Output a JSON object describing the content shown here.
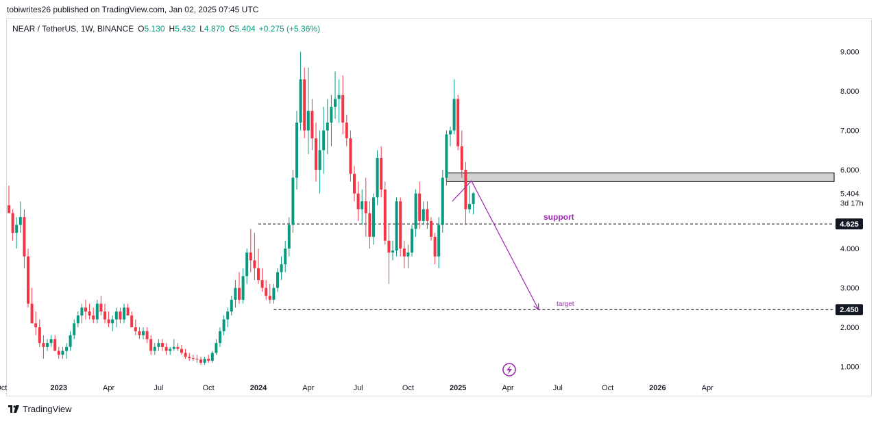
{
  "header": {
    "published_by": "tobiwrites26 published on TradingView.com, Jan 02, 2025 07:45 UTC"
  },
  "legend": {
    "symbol": "NEAR / TetherUS, 1W, BINANCE",
    "open_label": "O",
    "open": "5.130",
    "high_label": "H",
    "high": "5.432",
    "low_label": "L",
    "low": "4.870",
    "close_label": "C",
    "close": "5.404",
    "change": "+0.275 (+5.36%)"
  },
  "footer": {
    "brand": "TradingView"
  },
  "colors": {
    "up": "#089981",
    "down": "#f23645",
    "annotation": "#9c27b0",
    "zone": "#d1d1d1"
  },
  "chart_data": {
    "type": "candlestick",
    "title": "NEAR / TetherUS, 1W, BINANCE",
    "ylim": [
      0.7,
      9.5
    ],
    "y_ticks": [
      "9.000",
      "8.000",
      "7.000",
      "6.000",
      "4.000",
      "3.000",
      "2.000",
      "1.000"
    ],
    "y_tick_values": [
      9,
      8,
      7,
      6,
      4,
      3,
      2,
      1
    ],
    "x_ticks": [
      {
        "label": "Oct",
        "t": -2,
        "bold": false
      },
      {
        "label": "2023",
        "t": 13,
        "bold": true
      },
      {
        "label": "Apr",
        "t": 26,
        "bold": false
      },
      {
        "label": "Jul",
        "t": 39,
        "bold": false
      },
      {
        "label": "Oct",
        "t": 52,
        "bold": false
      },
      {
        "label": "2024",
        "t": 65,
        "bold": true
      },
      {
        "label": "Apr",
        "t": 78,
        "bold": false
      },
      {
        "label": "Jul",
        "t": 91,
        "bold": false
      },
      {
        "label": "Oct",
        "t": 104,
        "bold": false
      },
      {
        "label": "2025",
        "t": 117,
        "bold": true
      },
      {
        "label": "Apr",
        "t": 130,
        "bold": false
      },
      {
        "label": "Jul",
        "t": 143,
        "bold": false
      },
      {
        "label": "Oct",
        "t": 156,
        "bold": false
      },
      {
        "label": "2026",
        "t": 169,
        "bold": true
      },
      {
        "label": "Apr",
        "t": 182,
        "bold": false
      }
    ],
    "price_label": {
      "value": 5.404,
      "text": "5.404",
      "countdown": "3d 17h"
    },
    "levels": [
      {
        "name": "support",
        "label": "support",
        "value": 4.625,
        "tag": "4.625",
        "t_start": 65
      },
      {
        "name": "target",
        "label": "target",
        "value": 2.45,
        "tag": "2.450",
        "t_start": 69
      }
    ],
    "resistance_zone": {
      "low": 5.7,
      "high": 5.92,
      "t_start": 114
    },
    "projection": [
      {
        "t": 115.5,
        "p": 5.2
      },
      {
        "t": 120.5,
        "p": 5.72
      },
      {
        "t": 138,
        "p": 2.45
      }
    ],
    "candles": [
      [
        5.1,
        5.6,
        4.95,
        4.9
      ],
      [
        4.9,
        5.0,
        4.2,
        4.4
      ],
      [
        4.4,
        4.8,
        4.0,
        4.6
      ],
      [
        4.6,
        5.2,
        4.4,
        4.8
      ],
      [
        4.8,
        5.0,
        3.5,
        3.8
      ],
      [
        3.8,
        4.0,
        2.5,
        2.6
      ],
      [
        2.6,
        3.0,
        2.1,
        2.1
      ],
      [
        2.1,
        2.4,
        1.8,
        2.0
      ],
      [
        2.0,
        2.2,
        1.5,
        1.6
      ],
      [
        1.6,
        1.8,
        1.2,
        1.5
      ],
      [
        1.5,
        1.7,
        1.4,
        1.6
      ],
      [
        1.6,
        1.8,
        1.5,
        1.7
      ],
      [
        1.7,
        1.8,
        1.4,
        1.4
      ],
      [
        1.4,
        1.5,
        1.2,
        1.3
      ],
      [
        1.3,
        1.5,
        1.2,
        1.4
      ],
      [
        1.4,
        1.6,
        1.2,
        1.5
      ],
      [
        1.5,
        1.9,
        1.4,
        1.8
      ],
      [
        1.8,
        2.2,
        1.7,
        2.1
      ],
      [
        2.1,
        2.4,
        2.0,
        2.3
      ],
      [
        2.3,
        2.6,
        2.1,
        2.5
      ],
      [
        2.5,
        2.7,
        2.2,
        2.4
      ],
      [
        2.4,
        2.6,
        2.2,
        2.3
      ],
      [
        2.3,
        2.5,
        2.1,
        2.2
      ],
      [
        2.2,
        2.7,
        2.1,
        2.6
      ],
      [
        2.6,
        2.8,
        2.3,
        2.4
      ],
      [
        2.4,
        2.6,
        2.1,
        2.2
      ],
      [
        2.2,
        2.4,
        2.0,
        2.1
      ],
      [
        2.1,
        2.3,
        1.9,
        2.2
      ],
      [
        2.2,
        2.5,
        2.0,
        2.4
      ],
      [
        2.4,
        2.5,
        2.1,
        2.2
      ],
      [
        2.2,
        2.6,
        2.1,
        2.5
      ],
      [
        2.5,
        2.6,
        2.3,
        2.3
      ],
      [
        2.3,
        2.4,
        2.0,
        2.0
      ],
      [
        2.0,
        2.2,
        1.8,
        1.9
      ],
      [
        1.9,
        2.0,
        1.7,
        1.8
      ],
      [
        1.8,
        2.0,
        1.7,
        1.9
      ],
      [
        1.9,
        2.0,
        1.6,
        1.7
      ],
      [
        1.7,
        1.8,
        1.3,
        1.4
      ],
      [
        1.4,
        1.6,
        1.3,
        1.5
      ],
      [
        1.5,
        1.7,
        1.4,
        1.6
      ],
      [
        1.6,
        1.7,
        1.4,
        1.5
      ],
      [
        1.5,
        1.6,
        1.3,
        1.4
      ],
      [
        1.4,
        1.5,
        1.3,
        1.45
      ],
      [
        1.45,
        1.7,
        1.4,
        1.5
      ],
      [
        1.5,
        1.6,
        1.4,
        1.45
      ],
      [
        1.45,
        1.55,
        1.3,
        1.35
      ],
      [
        1.35,
        1.45,
        1.2,
        1.25
      ],
      [
        1.25,
        1.35,
        1.15,
        1.22
      ],
      [
        1.22,
        1.3,
        1.15,
        1.2
      ],
      [
        1.2,
        1.3,
        1.1,
        1.18
      ],
      [
        1.18,
        1.25,
        1.05,
        1.1
      ],
      [
        1.1,
        1.25,
        1.05,
        1.2
      ],
      [
        1.2,
        1.3,
        1.1,
        1.15
      ],
      [
        1.15,
        1.4,
        1.1,
        1.35
      ],
      [
        1.35,
        1.7,
        1.3,
        1.6
      ],
      [
        1.6,
        2.0,
        1.5,
        1.9
      ],
      [
        1.9,
        2.3,
        1.8,
        2.2
      ],
      [
        2.2,
        2.5,
        2.0,
        2.4
      ],
      [
        2.4,
        2.8,
        2.3,
        2.7
      ],
      [
        2.7,
        3.2,
        2.5,
        3.0
      ],
      [
        3.0,
        3.4,
        2.6,
        2.7
      ],
      [
        2.7,
        3.5,
        2.6,
        3.3
      ],
      [
        3.3,
        4.0,
        3.1,
        3.9
      ],
      [
        3.9,
        4.5,
        3.4,
        3.7
      ],
      [
        3.7,
        4.4,
        3.2,
        3.5
      ],
      [
        3.5,
        4.0,
        3.1,
        3.2
      ],
      [
        3.2,
        3.5,
        2.9,
        3.0
      ],
      [
        3.0,
        3.2,
        2.7,
        2.8
      ],
      [
        2.8,
        3.1,
        2.6,
        2.7
      ],
      [
        2.7,
        3.1,
        2.6,
        3.0
      ],
      [
        3.0,
        3.5,
        2.9,
        3.4
      ],
      [
        3.4,
        3.8,
        3.2,
        3.6
      ],
      [
        3.6,
        4.2,
        3.4,
        4.0
      ],
      [
        4.0,
        4.8,
        3.8,
        4.6
      ],
      [
        4.6,
        6.0,
        4.4,
        5.8
      ],
      [
        5.8,
        7.5,
        5.5,
        7.2
      ],
      [
        7.2,
        9.0,
        7.0,
        8.3
      ],
      [
        8.3,
        8.6,
        6.8,
        7.0
      ],
      [
        7.0,
        8.6,
        6.4,
        7.5
      ],
      [
        7.5,
        7.8,
        6.5,
        6.8
      ],
      [
        6.8,
        7.2,
        5.7,
        6.0
      ],
      [
        6.0,
        7.0,
        5.4,
        6.5
      ],
      [
        6.5,
        7.6,
        5.9,
        7.0
      ],
      [
        7.0,
        7.8,
        6.4,
        7.2
      ],
      [
        7.2,
        7.9,
        6.6,
        7.6
      ],
      [
        7.6,
        8.5,
        7.3,
        7.8
      ],
      [
        7.8,
        8.3,
        7.2,
        7.9
      ],
      [
        7.9,
        8.4,
        6.9,
        7.2
      ],
      [
        7.2,
        7.4,
        6.6,
        6.8
      ],
      [
        6.8,
        7.0,
        5.7,
        5.9
      ],
      [
        5.9,
        6.1,
        5.2,
        5.4
      ],
      [
        5.4,
        5.7,
        4.7,
        5.0
      ],
      [
        5.0,
        5.5,
        4.6,
        5.2
      ],
      [
        5.2,
        5.8,
        4.3,
        4.9
      ],
      [
        4.9,
        5.2,
        4.0,
        4.3
      ],
      [
        4.3,
        5.4,
        4.1,
        5.3
      ],
      [
        5.3,
        6.5,
        5.1,
        6.3
      ],
      [
        6.3,
        6.6,
        5.3,
        5.5
      ],
      [
        5.5,
        5.7,
        4.1,
        4.2
      ],
      [
        4.2,
        4.6,
        3.1,
        3.9
      ],
      [
        3.9,
        4.2,
        3.7,
        3.95
      ],
      [
        3.95,
        5.3,
        3.8,
        5.2
      ],
      [
        5.2,
        5.3,
        3.8,
        4.0
      ],
      [
        4.0,
        4.2,
        3.5,
        3.8
      ],
      [
        3.8,
        4.1,
        3.5,
        3.9
      ],
      [
        3.9,
        4.6,
        3.8,
        4.5
      ],
      [
        4.5,
        5.5,
        4.3,
        5.4
      ],
      [
        5.4,
        5.7,
        4.5,
        4.7
      ],
      [
        4.7,
        5.2,
        4.6,
        5.0
      ],
      [
        5.0,
        5.2,
        4.5,
        4.7
      ],
      [
        4.7,
        4.8,
        4.2,
        4.3
      ],
      [
        4.3,
        4.4,
        3.6,
        3.8
      ],
      [
        3.8,
        4.8,
        3.5,
        4.6
      ],
      [
        4.6,
        6.0,
        4.4,
        5.8
      ],
      [
        5.8,
        7.0,
        5.6,
        6.9
      ],
      [
        6.9,
        7.1,
        6.6,
        7.0
      ],
      [
        7.0,
        8.3,
        6.9,
        7.8
      ],
      [
        7.8,
        7.9,
        6.5,
        6.6
      ],
      [
        6.6,
        7.0,
        5.8,
        6.0
      ],
      [
        6.0,
        6.2,
        4.6,
        5.0
      ],
      [
        5.0,
        5.6,
        4.9,
        5.13
      ],
      [
        5.13,
        5.432,
        4.87,
        5.404
      ]
    ]
  }
}
